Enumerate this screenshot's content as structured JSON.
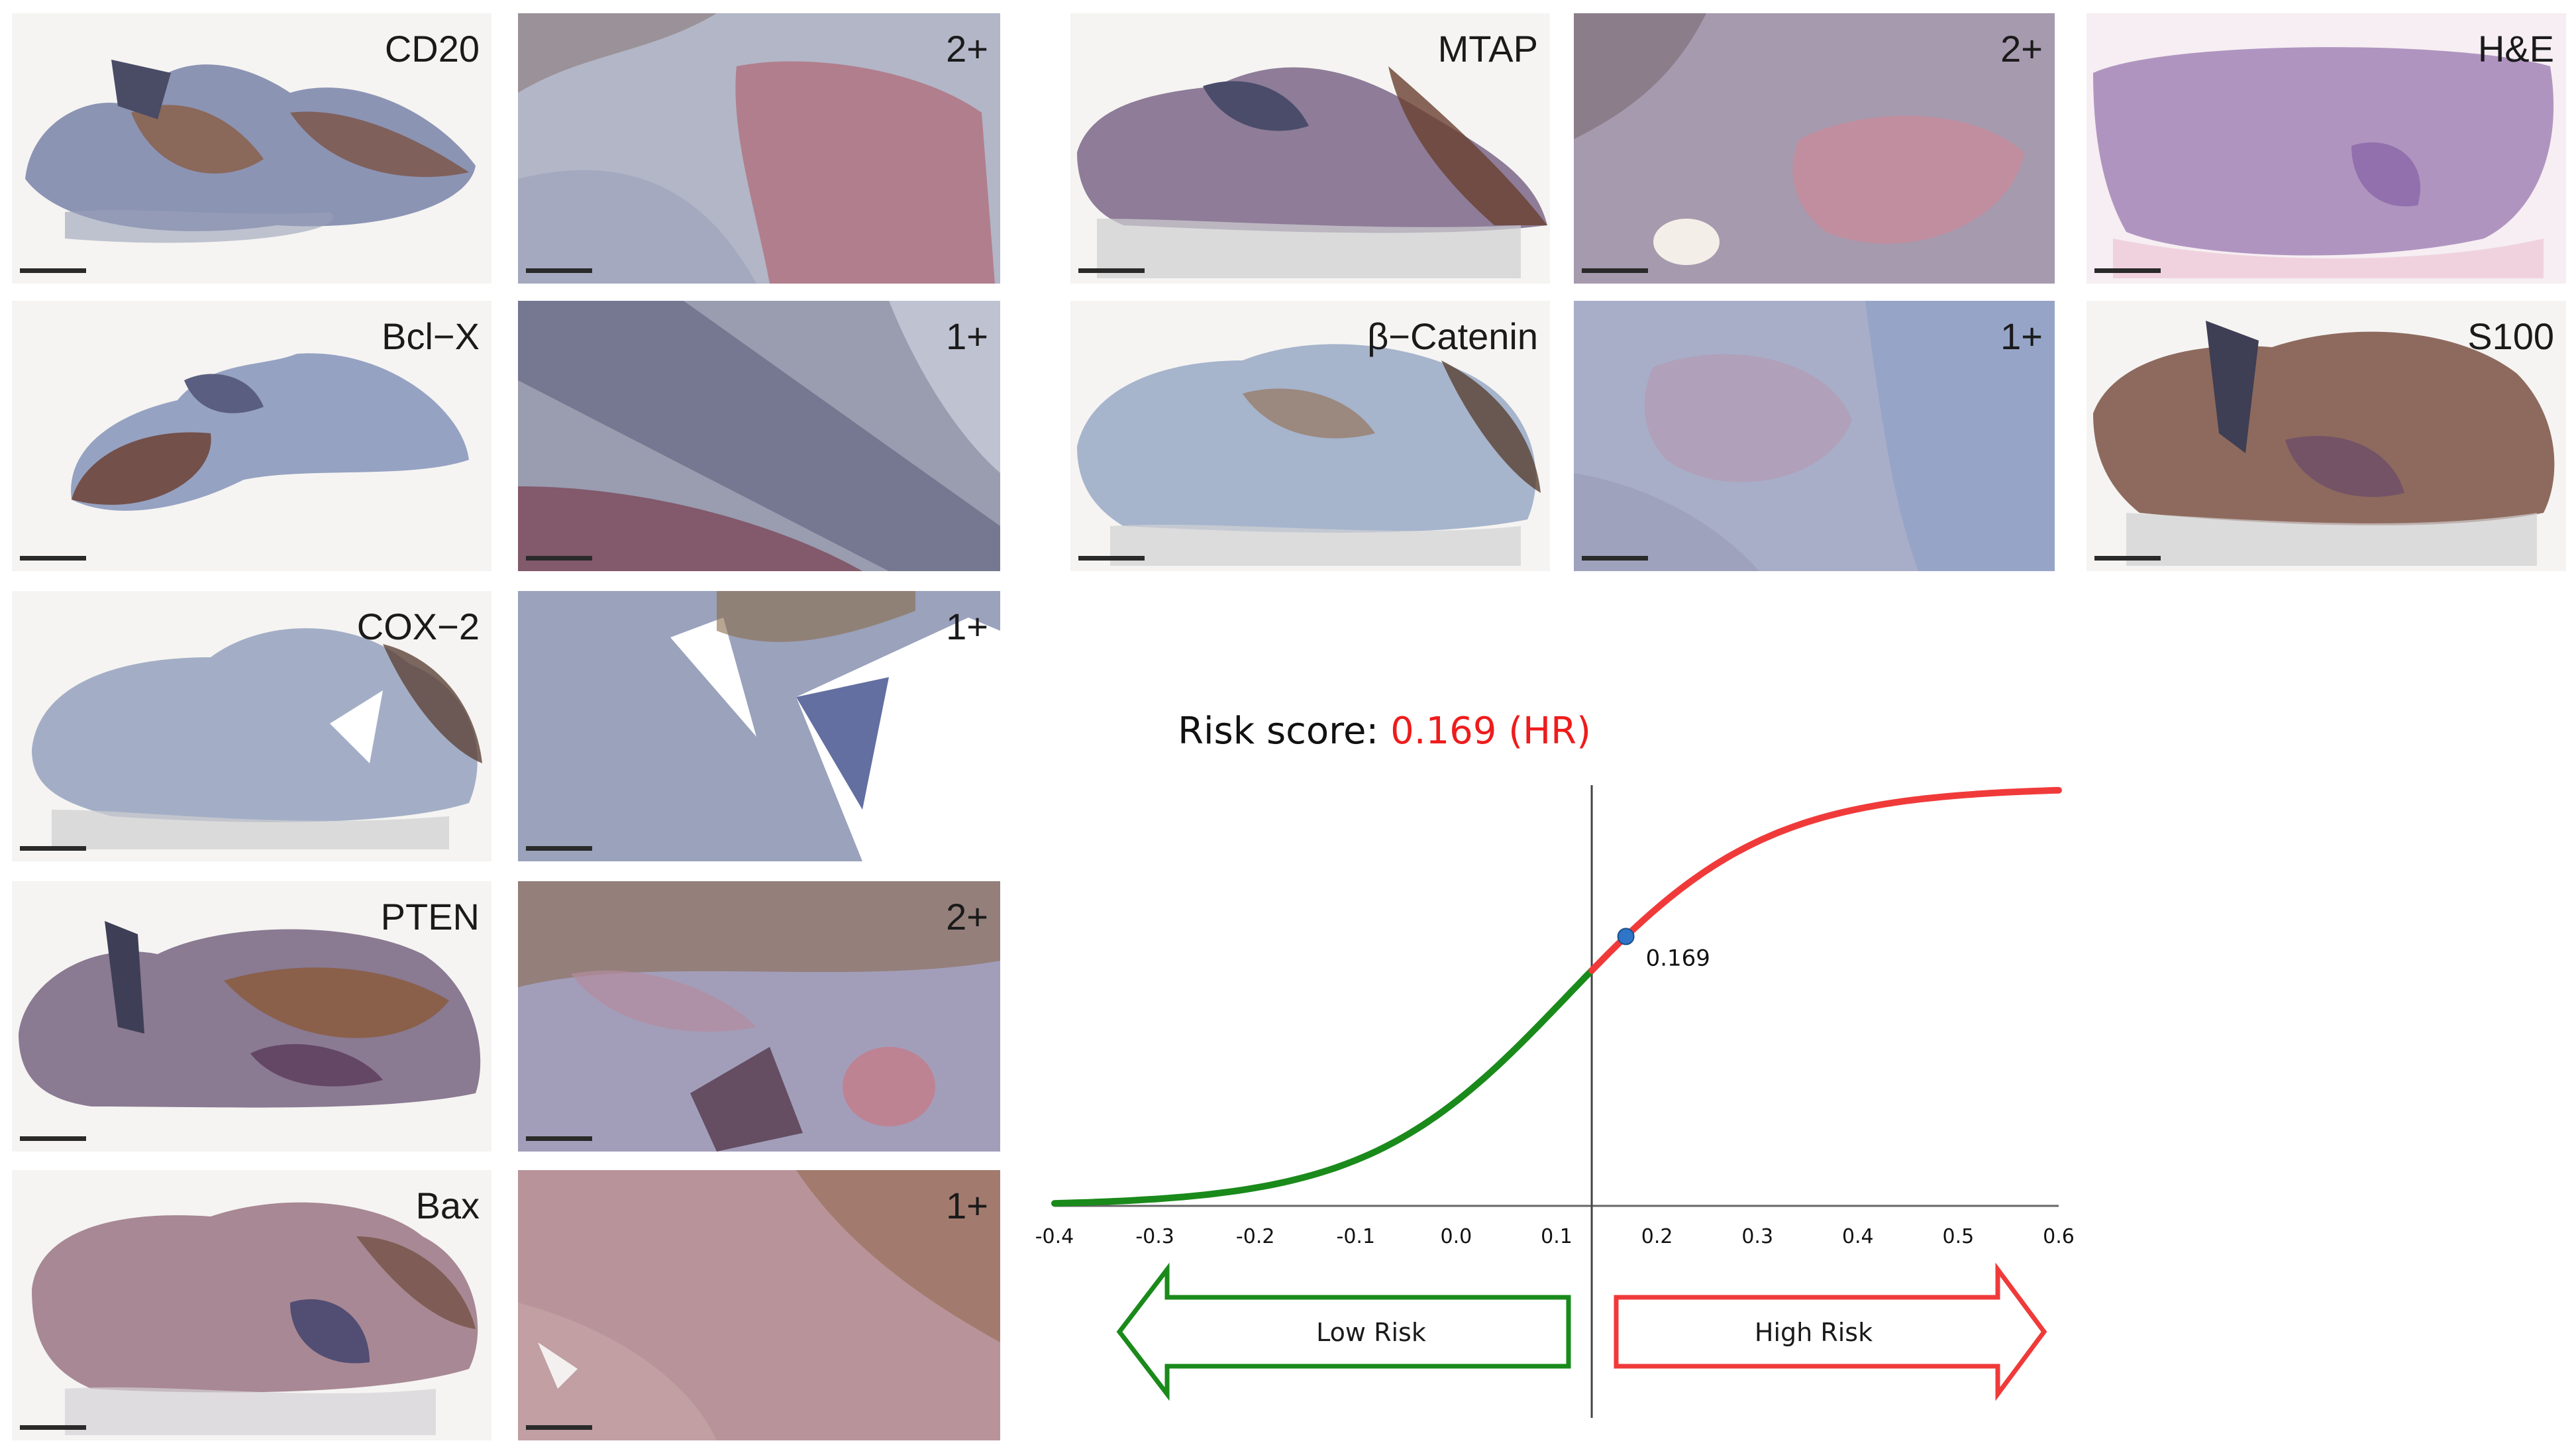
{
  "panels": {
    "cd20": "CD20",
    "cd20_score": "2+",
    "bclx": "Bcl−X",
    "bclx_score": "1+",
    "cox2": "COX−2",
    "cox2_score": "1+",
    "pten": "PTEN",
    "pten_score": "2+",
    "bax": "Bax",
    "bax_score": "1+",
    "mtap": "MTAP",
    "mtap_score": "2+",
    "catenin": "β−Catenin",
    "catenin_score": "1+",
    "he": "H&E",
    "s100": "S100"
  },
  "chart_data": {
    "type": "line",
    "title_prefix": "Risk score: ",
    "title_value": "0.169 (HR)",
    "xlim": [
      -0.4,
      0.6
    ],
    "x_ticks": [
      "-0.4",
      "-0.3",
      "-0.2",
      "-0.1",
      "0.0",
      "0.1",
      "0.2",
      "0.3",
      "0.4",
      "0.5",
      "0.6"
    ],
    "threshold_x": 0.135,
    "marker": {
      "x": 0.169,
      "label": "0.169"
    },
    "low_risk_label": "Low Risk",
    "high_risk_label": "High Risk",
    "colors": {
      "low": "#1a8a1a",
      "high": "#f03a3a",
      "title_value": "#ee1c1c",
      "marker": "#2e75c8"
    }
  }
}
